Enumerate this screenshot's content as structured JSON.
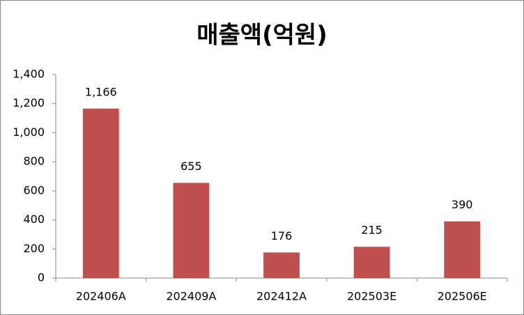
{
  "chart_data": {
    "type": "bar",
    "title": "매출액(억원)",
    "categories": [
      "202406A",
      "202409A",
      "202412A",
      "202503E",
      "202506E"
    ],
    "values": [
      1166,
      655,
      176,
      215,
      390
    ],
    "value_labels": [
      "1,166",
      "655",
      "176",
      "215",
      "390"
    ],
    "color": "#c0504d",
    "ylim": [
      0,
      1400
    ],
    "yticks": [
      0,
      200,
      400,
      600,
      800,
      {
        "value": 1000,
        "label": "1,000"
      },
      {
        "value": 1200,
        "label": "1,200"
      },
      {
        "value": 1400,
        "label": "1,400"
      }
    ],
    "grid": false
  }
}
